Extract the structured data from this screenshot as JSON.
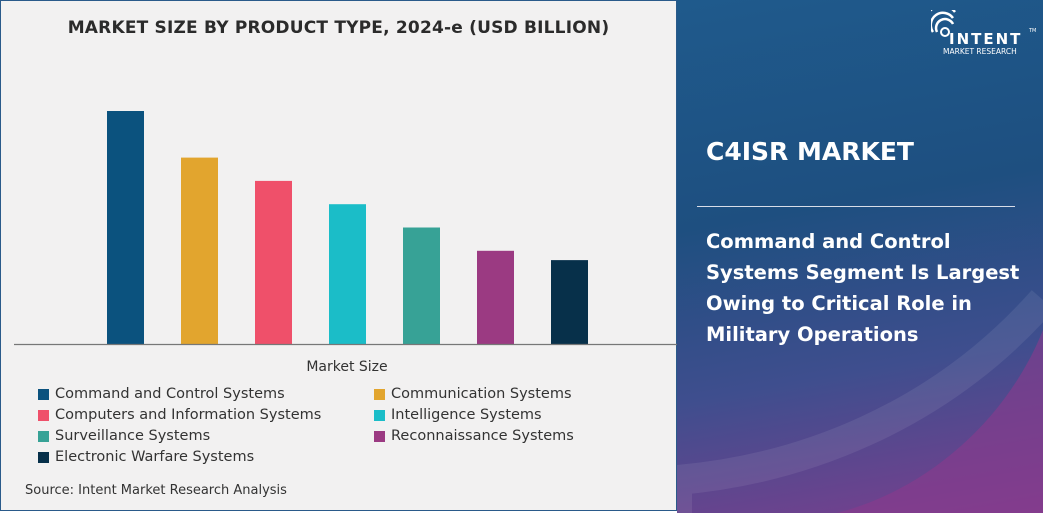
{
  "chart_data": {
    "type": "bar",
    "title": "MARKET SIZE BY PRODUCT TYPE, 2024-e (USD BILLION)",
    "xlabel": "Market Size",
    "ylabel": "",
    "value_note": "",
    "categories": [
      "Command and Control Systems",
      "Communication Systems",
      "Computers and Information Systems",
      "Intelligence Systems",
      "Surveillance Systems",
      "Reconnaissance Systems",
      "Electronic Warfare Systems"
    ],
    "values": [
      100,
      80,
      70,
      60,
      50,
      40,
      36
    ],
    "colors": [
      "#0b527e",
      "#e2a52e",
      "#ef506a",
      "#1bbdc8",
      "#37a296",
      "#9b3a82",
      "#07304a"
    ],
    "ylim": [
      0,
      100
    ],
    "grid": false,
    "legend_position": "bottom"
  },
  "source": "Source: Intent Market Research Analysis",
  "panel": {
    "title": "C4ISR MARKET",
    "description": "Command and Control Systems Segment Is Largest Owing to Critical Role in Military Operations"
  },
  "logo": {
    "name": "INTENT",
    "sub": "MARKET RESEARCH",
    "tm": "TM"
  }
}
